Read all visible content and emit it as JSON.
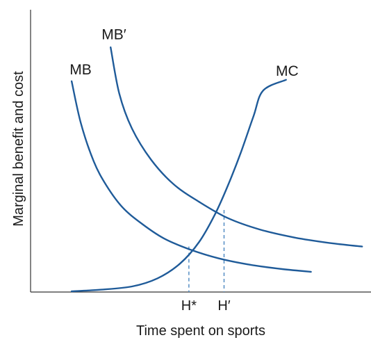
{
  "chart_data": {
    "type": "line",
    "title": "",
    "xlabel": "Time spent on sports",
    "ylabel": "Marginal benefit and cost",
    "xlim": [
      0,
      10
    ],
    "ylim": [
      0,
      10
    ],
    "grid": false,
    "legend": "none",
    "colors": {
      "curve": "#1f5b99",
      "axis": "#333333",
      "guide": "#4a86c0",
      "text": "#1a1a1a"
    },
    "series": [
      {
        "name": "MB",
        "label": "MB",
        "points": [
          [
            0.61,
            7.75
          ],
          [
            0.9,
            6.2
          ],
          [
            1.3,
            4.8
          ],
          [
            1.7,
            3.9
          ],
          [
            2.2,
            3.1
          ],
          [
            2.8,
            2.5
          ],
          [
            3.5,
            1.95
          ],
          [
            4.3,
            1.55
          ],
          [
            5.2,
            1.22
          ],
          [
            6.2,
            0.98
          ],
          [
            7.2,
            0.82
          ],
          [
            8.1,
            0.72
          ]
        ],
        "label_at": [
          0.55,
          8.0
        ]
      },
      {
        "name": "MB′",
        "label": "MB′",
        "points": [
          [
            1.83,
            9.0
          ],
          [
            2.1,
            7.3
          ],
          [
            2.5,
            6.0
          ],
          [
            3.1,
            4.85
          ],
          [
            3.8,
            3.95
          ],
          [
            4.6,
            3.3
          ],
          [
            5.5,
            2.7
          ],
          [
            6.5,
            2.28
          ],
          [
            7.6,
            1.98
          ],
          [
            8.7,
            1.78
          ],
          [
            9.7,
            1.65
          ]
        ],
        "label_at": [
          1.55,
          9.3
        ]
      },
      {
        "name": "MC",
        "label": "MC",
        "points": [
          [
            0.61,
            0.0
          ],
          [
            1.5,
            0.06
          ],
          [
            2.5,
            0.18
          ],
          [
            3.3,
            0.48
          ],
          [
            4.0,
            1.02
          ],
          [
            4.6,
            1.82
          ],
          [
            5.1,
            2.85
          ],
          [
            5.5,
            3.9
          ],
          [
            5.9,
            5.1
          ],
          [
            6.3,
            6.45
          ],
          [
            6.6,
            7.4
          ],
          [
            7.32,
            7.8
          ]
        ],
        "label_at": [
          7.0,
          7.95
        ]
      }
    ],
    "x_ticks": [
      {
        "label": "H*",
        "x": 4.28
      },
      {
        "label": "H′",
        "x": 5.38
      }
    ],
    "guides": [
      {
        "x": 4.28,
        "y": 1.65
      },
      {
        "x": 5.38,
        "y": 3.0
      }
    ]
  }
}
